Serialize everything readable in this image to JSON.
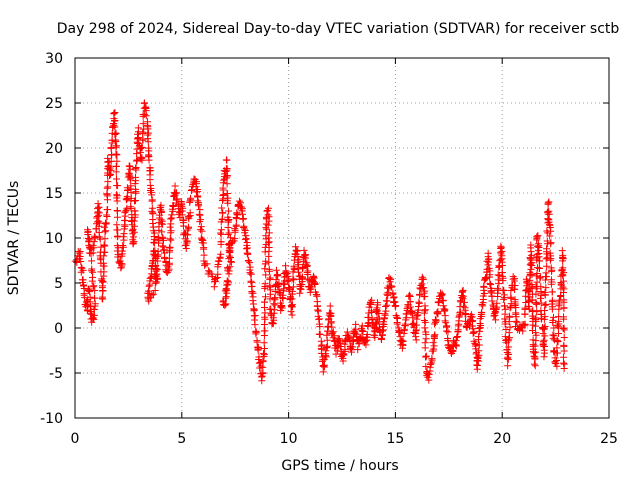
{
  "chart_data": {
    "type": "scatter",
    "title": "Day 298 of 2024, Sidereal Day-to-day VTEC variation (SDTVAR) for receiver sctb",
    "xlabel": "GPS time / hours",
    "ylabel": "SDTVAR / TECUs",
    "xlim": [
      0,
      25
    ],
    "ylim": [
      -10,
      30
    ],
    "xticks": [
      0,
      5,
      10,
      15,
      20,
      25
    ],
    "yticks": [
      -10,
      -5,
      0,
      5,
      10,
      15,
      20,
      25,
      30
    ],
    "grid": true,
    "marker": "plus",
    "color": "#ff0000",
    "series": [
      {
        "name": "SDTVAR",
        "trace": [
          [
            0.0,
            7.0
          ],
          [
            0.2,
            8.5
          ],
          [
            0.35,
            6.0
          ],
          [
            0.45,
            3.5
          ],
          [
            0.55,
            2.0
          ],
          [
            0.65,
            4.5
          ],
          [
            0.75,
            1.2
          ],
          [
            0.85,
            0.8
          ],
          [
            0.95,
            2.5
          ],
          [
            0.6,
            11.0
          ],
          [
            0.7,
            8.5
          ],
          [
            0.85,
            8.5
          ],
          [
            1.0,
            11.0
          ],
          [
            1.1,
            14.0
          ],
          [
            1.3,
            3.0
          ],
          [
            1.4,
            11.0
          ],
          [
            1.5,
            12.5
          ],
          [
            1.55,
            19.0
          ],
          [
            1.65,
            17.0
          ],
          [
            1.75,
            22.0
          ],
          [
            1.85,
            24.0
          ],
          [
            1.9,
            21.0
          ],
          [
            1.95,
            19.0
          ],
          [
            2.0,
            8.0
          ],
          [
            2.15,
            6.5
          ],
          [
            2.25,
            9.5
          ],
          [
            2.35,
            12.5
          ],
          [
            2.45,
            15.0
          ],
          [
            2.55,
            18.0
          ],
          [
            2.65,
            13.0
          ],
          [
            2.75,
            9.0
          ],
          [
            2.85,
            17.0
          ],
          [
            2.95,
            22.0
          ],
          [
            3.1,
            18.5
          ],
          [
            3.25,
            25.0
          ],
          [
            3.35,
            24.0
          ],
          [
            3.45,
            20.0
          ],
          [
            3.55,
            16.0
          ],
          [
            3.65,
            12.0
          ],
          [
            3.75,
            8.0
          ],
          [
            3.85,
            5.0
          ],
          [
            3.4,
            3.0
          ],
          [
            3.5,
            4.5
          ],
          [
            3.6,
            6.5
          ],
          [
            3.7,
            8.5
          ],
          [
            3.8,
            5.0
          ],
          [
            4.0,
            14.0
          ],
          [
            4.1,
            10.0
          ],
          [
            4.2,
            8.0
          ],
          [
            4.3,
            6.0
          ],
          [
            4.4,
            7.0
          ],
          [
            4.5,
            12.0
          ],
          [
            4.6,
            14.0
          ],
          [
            4.7,
            15.5
          ],
          [
            4.8,
            14.0
          ],
          [
            4.9,
            12.5
          ],
          [
            5.0,
            14.0
          ],
          [
            5.1,
            11.0
          ],
          [
            5.2,
            9.0
          ],
          [
            5.3,
            11.0
          ],
          [
            5.45,
            15.0
          ],
          [
            5.6,
            16.5
          ],
          [
            5.7,
            15.5
          ],
          [
            5.8,
            13.5
          ],
          [
            5.9,
            11.0
          ],
          [
            6.0,
            9.0
          ],
          [
            6.1,
            7.0
          ],
          [
            6.5,
            5.0
          ],
          [
            6.65,
            6.0
          ],
          [
            6.8,
            8.0
          ],
          [
            6.9,
            14.0
          ],
          [
            7.0,
            17.0
          ],
          [
            7.1,
            18.5
          ],
          [
            7.2,
            10.0
          ],
          [
            7.3,
            7.0
          ],
          [
            6.95,
            3.0
          ],
          [
            7.05,
            2.5
          ],
          [
            7.25,
            9.5
          ],
          [
            7.45,
            10.0
          ],
          [
            7.55,
            12.0
          ],
          [
            7.65,
            14.0
          ],
          [
            7.75,
            13.5
          ],
          [
            7.85,
            12.5
          ],
          [
            7.95,
            11.0
          ],
          [
            8.05,
            9.0
          ],
          [
            8.15,
            7.0
          ],
          [
            8.25,
            5.5
          ],
          [
            8.35,
            3.0
          ],
          [
            8.45,
            0.0
          ],
          [
            8.55,
            -2.0
          ],
          [
            8.65,
            -4.0
          ],
          [
            8.75,
            -5.5
          ],
          [
            8.85,
            -3.0
          ],
          [
            8.95,
            12.5
          ],
          [
            9.05,
            13.0
          ],
          [
            9.15,
            2.0
          ],
          [
            9.25,
            0.5
          ],
          [
            9.35,
            3.0
          ],
          [
            9.45,
            6.0
          ],
          [
            9.55,
            4.5
          ],
          [
            9.65,
            2.0
          ],
          [
            9.75,
            4.0
          ],
          [
            9.85,
            6.5
          ],
          [
            9.95,
            5.5
          ],
          [
            10.05,
            4.0
          ],
          [
            10.15,
            1.5
          ],
          [
            10.25,
            7.0
          ],
          [
            10.35,
            9.0
          ],
          [
            10.45,
            7.5
          ],
          [
            10.55,
            4.0
          ],
          [
            10.65,
            6.0
          ],
          [
            10.75,
            8.5
          ],
          [
            10.85,
            7.0
          ],
          [
            10.95,
            5.0
          ],
          [
            11.05,
            4.0
          ],
          [
            11.15,
            6.0
          ],
          [
            11.25,
            4.5
          ],
          [
            11.35,
            2.5
          ],
          [
            11.45,
            0.0
          ],
          [
            11.55,
            -2.5
          ],
          [
            11.65,
            -4.5
          ],
          [
            11.75,
            -3.0
          ],
          [
            11.85,
            0.5
          ],
          [
            11.95,
            2.0
          ],
          [
            12.05,
            -0.5
          ],
          [
            12.15,
            -1.5
          ],
          [
            12.25,
            -2.5
          ],
          [
            12.35,
            -1.0
          ],
          [
            12.45,
            -2.5
          ],
          [
            12.55,
            -3.5
          ],
          [
            12.65,
            -2.0
          ],
          [
            12.75,
            -0.5
          ],
          [
            12.85,
            -1.5
          ],
          [
            12.95,
            -2.5
          ],
          [
            13.05,
            -1.0
          ],
          [
            13.15,
            0.0
          ],
          [
            13.25,
            -2.0
          ],
          [
            13.35,
            -1.0
          ],
          [
            13.45,
            0.0
          ],
          [
            13.55,
            -1.5
          ],
          [
            13.65,
            -2.0
          ],
          [
            13.75,
            1.5
          ],
          [
            13.85,
            3.0
          ],
          [
            13.95,
            0.5
          ],
          [
            14.05,
            -1.0
          ],
          [
            14.15,
            2.5
          ],
          [
            14.25,
            0.0
          ],
          [
            14.35,
            -1.5
          ],
          [
            14.45,
            1.0
          ],
          [
            14.55,
            2.0
          ],
          [
            14.65,
            4.5
          ],
          [
            14.75,
            5.5
          ],
          [
            14.85,
            4.0
          ],
          [
            14.95,
            3.0
          ],
          [
            15.05,
            1.5
          ],
          [
            15.15,
            0.0
          ],
          [
            15.25,
            -1.5
          ],
          [
            15.35,
            -2.0
          ],
          [
            15.45,
            0.5
          ],
          [
            15.55,
            2.0
          ],
          [
            15.65,
            3.5
          ],
          [
            15.75,
            1.5
          ],
          [
            15.85,
            0.0
          ],
          [
            15.95,
            -1.0
          ],
          [
            16.05,
            2.0
          ],
          [
            16.15,
            4.0
          ],
          [
            16.25,
            5.5
          ],
          [
            16.35,
            4.5
          ],
          [
            16.45,
            -5.0
          ],
          [
            16.55,
            -5.5
          ],
          [
            16.65,
            -4.5
          ],
          [
            16.75,
            -2.5
          ],
          [
            16.85,
            0.0
          ],
          [
            16.95,
            1.5
          ],
          [
            17.05,
            3.0
          ],
          [
            17.15,
            4.0
          ],
          [
            17.25,
            3.0
          ],
          [
            17.35,
            0.5
          ],
          [
            17.45,
            -1.0
          ],
          [
            17.55,
            -2.5
          ],
          [
            17.65,
            -3.0
          ],
          [
            17.75,
            -1.5
          ],
          [
            17.85,
            -2.0
          ],
          [
            17.95,
            0.0
          ],
          [
            18.05,
            2.5
          ],
          [
            18.15,
            4.0
          ],
          [
            18.25,
            2.0
          ],
          [
            18.35,
            0.0
          ],
          [
            18.45,
            0.5
          ],
          [
            18.55,
            1.5
          ],
          [
            18.65,
            0.0
          ],
          [
            18.75,
            -2.0
          ],
          [
            18.85,
            -4.5
          ],
          [
            18.95,
            0.0
          ],
          [
            19.05,
            2.0
          ],
          [
            19.15,
            4.5
          ],
          [
            19.25,
            6.0
          ],
          [
            19.35,
            8.0
          ],
          [
            19.45,
            5.0
          ],
          [
            19.55,
            2.5
          ],
          [
            19.65,
            1.0
          ],
          [
            19.75,
            3.0
          ],
          [
            19.85,
            6.0
          ],
          [
            19.95,
            9.0
          ],
          [
            20.05,
            5.5
          ],
          [
            20.15,
            0.0
          ],
          [
            20.25,
            -4.0
          ],
          [
            20.45,
            5.0
          ],
          [
            20.55,
            5.5
          ],
          [
            20.65,
            0.5
          ],
          [
            20.75,
            0.0
          ],
          [
            20.85,
            0.0
          ],
          [
            20.95,
            0.0
          ],
          [
            21.05,
            0.0
          ],
          [
            21.15,
            5.5
          ],
          [
            21.25,
            2.0
          ],
          [
            21.35,
            9.0
          ],
          [
            21.45,
            -2.5
          ],
          [
            21.55,
            -4.0
          ],
          [
            21.65,
            10.5
          ],
          [
            21.75,
            7.5
          ],
          [
            21.85,
            1.0
          ],
          [
            21.95,
            -3.0
          ],
          [
            22.05,
            5.0
          ],
          [
            22.15,
            14.0
          ],
          [
            22.25,
            10.0
          ],
          [
            22.35,
            3.0
          ],
          [
            22.45,
            -3.5
          ],
          [
            22.55,
            -4.0
          ],
          [
            22.65,
            2.0
          ],
          [
            22.75,
            5.0
          ],
          [
            22.85,
            8.5
          ],
          [
            22.9,
            -4.5
          ]
        ]
      }
    ]
  }
}
